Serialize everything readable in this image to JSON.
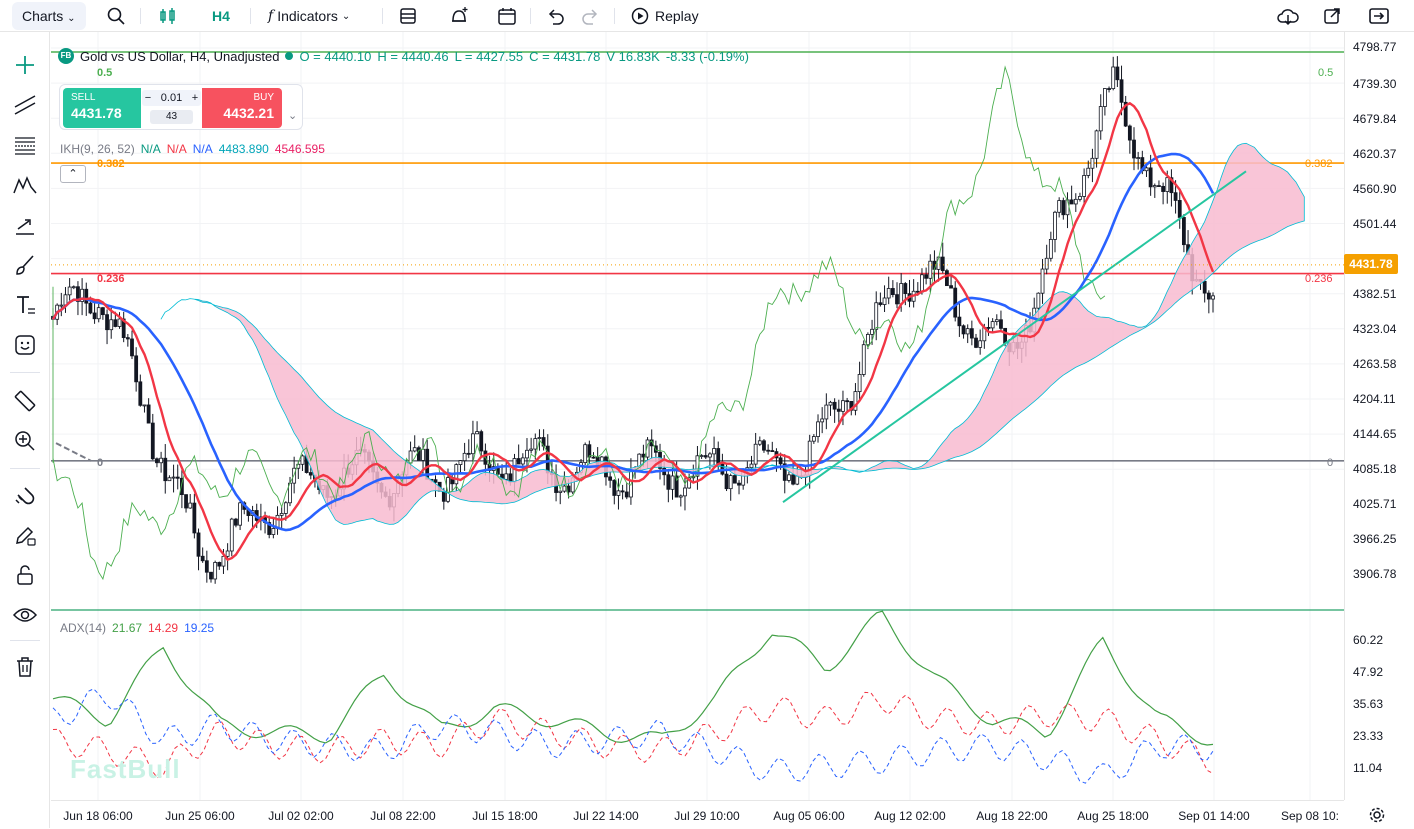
{
  "toolbar": {
    "charts_label": "Charts",
    "interval_label": "H4",
    "indicators_label": "Indicators",
    "replay_label": "Replay"
  },
  "legend": {
    "logo_text": "FB",
    "symbol": "Gold vs US Dollar, H4, Unadjusted",
    "open": "O = 4440.10",
    "high": "H = 4440.46",
    "low": "L = 4427.55",
    "close": "C = 4431.78",
    "volume": "V 16.83K",
    "change": "-8.33 (-0.19%)"
  },
  "trade_panel": {
    "sell_label": "SELL",
    "sell_price": "4431.78",
    "buy_label": "BUY",
    "buy_price": "4432.21",
    "quantity": "0.01",
    "spread": "43"
  },
  "ichimoku": {
    "name": "IKH(9, 26, 52)",
    "v1": "N/A",
    "v2": "N/A",
    "v3": "N/A",
    "v4": "4483.890",
    "v5": "4546.595",
    "c1": "#089981",
    "c2": "#f23645",
    "c3": "#2962ff",
    "c4": "#00bcd4",
    "c5": "#e91e63"
  },
  "adx": {
    "name": "ADX(14)",
    "v1": "21.67",
    "v2": "14.29",
    "v3": "19.25",
    "c1": "#43a047",
    "c2": "#f23645",
    "c3": "#2962ff"
  },
  "fib_levels": {
    "l05": "0.5",
    "l0382": "0.382",
    "l0236": "0.236",
    "l0": "0"
  },
  "last_price": "4431.78",
  "watermark": "FastBull",
  "price_ticks": [
    "4798.77",
    "4739.30",
    "4679.84",
    "4620.37",
    "4560.90",
    "4501.44",
    "4382.51",
    "4323.04",
    "4263.58",
    "4204.11",
    "4144.65",
    "4085.18",
    "4025.71",
    "3966.25",
    "3906.78"
  ],
  "adx_ticks": [
    "60.22",
    "47.92",
    "35.63",
    "23.33",
    "11.04"
  ],
  "time_ticks": [
    "Jun 18 06:00",
    "Jun 25 06:00",
    "Jul 02 02:00",
    "Jul 08 22:00",
    "Jul 15 18:00",
    "Jul 22 14:00",
    "Jul 29 10:00",
    "Aug 05 06:00",
    "Aug 12 02:00",
    "Aug 18 22:00",
    "Aug 25 18:00",
    "Sep 01 14:00",
    "Sep 08 10:"
  ],
  "chart_data": {
    "type": "candlestick",
    "symbol": "Gold vs US Dollar",
    "timeframe": "H4",
    "price_range": [
      3880,
      4830
    ],
    "fib_levels": [
      {
        "label": "0.5",
        "price": 4792,
        "color": "#4caf50"
      },
      {
        "label": "0.382",
        "price": 4604,
        "color": "#ff9800"
      },
      {
        "label": "0.236",
        "price": 4417,
        "color": "#f23645"
      },
      {
        "label": "0",
        "price": 4100,
        "color": "#787b86"
      }
    ],
    "close_path": [
      {
        "t": "Jun 18 06:00",
        "p": 4340
      },
      {
        "t": "Jun 25 06:00",
        "p": 3990
      },
      {
        "t": "Jul 02 02:00",
        "p": 4010
      },
      {
        "t": "Jul 08 22:00",
        "p": 4130
      },
      {
        "t": "Jul 15 18:00",
        "p": 4050
      },
      {
        "t": "Jul 22 14:00",
        "p": 4140
      },
      {
        "t": "Jul 29 10:00",
        "p": 4030
      },
      {
        "t": "Aug 05 06:00",
        "p": 4150
      },
      {
        "t": "Aug 12 02:00",
        "p": 4380
      },
      {
        "t": "Aug 18 22:00",
        "p": 4340
      },
      {
        "t": "Aug 25 18:00",
        "p": 4670
      },
      {
        "t": "Sep 01 14:00",
        "p": 4432
      }
    ],
    "adx_range": [
      0,
      70
    ],
    "adx_series": [
      {
        "name": "ADX",
        "values": [
          38,
          30,
          58,
          28,
          25,
          24,
          48,
          26,
          34,
          30,
          25,
          22,
          38,
          65,
          50,
          70,
          45,
          30,
          25,
          60,
          30,
          22
        ]
      },
      {
        "name": "+DI",
        "values": [
          22,
          18,
          12,
          25,
          20,
          18,
          22,
          20,
          30,
          25,
          20,
          18,
          25,
          35,
          30,
          38,
          30,
          28,
          32,
          30,
          22,
          14
        ]
      },
      {
        "name": "-DI",
        "values": [
          30,
          40,
          22,
          28,
          22,
          20,
          18,
          28,
          25,
          20,
          22,
          25,
          18,
          10,
          12,
          14,
          18,
          20,
          15,
          8,
          20,
          19
        ]
      }
    ]
  }
}
